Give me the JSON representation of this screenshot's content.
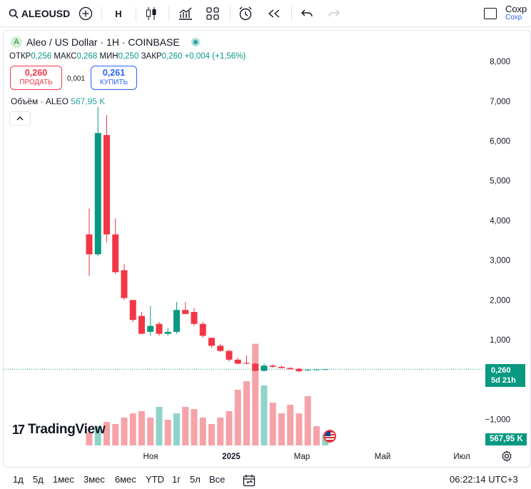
{
  "toolbar": {
    "symbol": "ALEOUSD",
    "interval": "H",
    "save_label": "Сохр",
    "save_sub": "Сохр"
  },
  "legend": {
    "title": "Aleo / US Dollar · 1H · COINBASE",
    "badge": "A",
    "o_label": "ОТКР",
    "o": "0,256",
    "h_label": "МАКС",
    "h": "0,268",
    "l_label": "МИН",
    "l": "0,250",
    "c_label": "ЗАКР",
    "c": "0,260",
    "change": "+0,004 (+1,56%)"
  },
  "trade": {
    "sell_price": "0,260",
    "sell_label": "ПРОДАТЬ",
    "spread": "0,001",
    "buy_price": "0,261",
    "buy_label": "КУПИТЬ"
  },
  "volume_legend": {
    "label": "Объём · ALEO",
    "value": "567,95 K"
  },
  "price_axis": [
    "8,000",
    "7,000",
    "6,000",
    "5,000",
    "4,000",
    "3,000",
    "2,000",
    "1,000",
    "−1,000"
  ],
  "current_price": {
    "value": "0,260",
    "countdown": "5d 21h"
  },
  "volume_tag": "567,95 K",
  "time_axis": [
    "Ноя",
    "2025",
    "Мар",
    "Май",
    "Июл"
  ],
  "logo": "TradingView",
  "ranges": [
    "1д",
    "5д",
    "1мес",
    "3мес",
    "6мес",
    "YTD",
    "1г",
    "5л",
    "Все"
  ],
  "clock": "06:22:14 UTC+3",
  "colors": {
    "up": "#089981",
    "down": "#f23645",
    "vol_up": "#8fd3c9",
    "vol_down": "#f5a3a8"
  },
  "chart_data": {
    "type": "candlestick",
    "title": "Aleo / US Dollar · 1H · COINBASE",
    "ylim": [
      -1.3,
      8.5
    ],
    "x_ticks": [
      "Ноя",
      "2025",
      "Мар",
      "Май",
      "Июл"
    ],
    "candles": [
      {
        "o": 3.65,
        "h": 4.3,
        "l": 2.6,
        "c": 3.15
      },
      {
        "o": 3.15,
        "h": 6.85,
        "l": 3.1,
        "c": 6.2
      },
      {
        "o": 6.15,
        "h": 6.65,
        "l": 3.45,
        "c": 3.65
      },
      {
        "o": 3.65,
        "h": 4.05,
        "l": 2.65,
        "c": 2.7
      },
      {
        "o": 2.75,
        "h": 2.9,
        "l": 2.0,
        "c": 2.05
      },
      {
        "o": 2.0,
        "h": 2.0,
        "l": 1.45,
        "c": 1.5
      },
      {
        "o": 1.6,
        "h": 1.7,
        "l": 1.15,
        "c": 1.15
      },
      {
        "o": 1.2,
        "h": 1.85,
        "l": 1.1,
        "c": 1.35
      },
      {
        "o": 1.4,
        "h": 1.45,
        "l": 1.1,
        "c": 1.15
      },
      {
        "o": 1.15,
        "h": 1.3,
        "l": 1.1,
        "c": 1.2
      },
      {
        "o": 1.2,
        "h": 1.95,
        "l": 1.15,
        "c": 1.75
      },
      {
        "o": 1.75,
        "h": 1.95,
        "l": 1.65,
        "c": 1.65
      },
      {
        "o": 1.7,
        "h": 1.8,
        "l": 1.35,
        "c": 1.4
      },
      {
        "o": 1.4,
        "h": 1.45,
        "l": 1.05,
        "c": 1.1
      },
      {
        "o": 1.05,
        "h": 1.05,
        "l": 0.8,
        "c": 0.85
      },
      {
        "o": 0.85,
        "h": 0.9,
        "l": 0.7,
        "c": 0.72
      },
      {
        "o": 0.72,
        "h": 0.75,
        "l": 0.45,
        "c": 0.5
      },
      {
        "o": 0.5,
        "h": 0.55,
        "l": 0.38,
        "c": 0.4
      },
      {
        "o": 0.42,
        "h": 0.6,
        "l": 0.38,
        "c": 0.4
      },
      {
        "o": 0.4,
        "h": 0.42,
        "l": 0.2,
        "c": 0.22
      },
      {
        "o": 0.22,
        "h": 0.4,
        "l": 0.2,
        "c": 0.35
      },
      {
        "o": 0.35,
        "h": 0.38,
        "l": 0.3,
        "c": 0.32
      },
      {
        "o": 0.32,
        "h": 0.35,
        "l": 0.28,
        "c": 0.29
      },
      {
        "o": 0.29,
        "h": 0.31,
        "l": 0.25,
        "c": 0.26
      },
      {
        "o": 0.27,
        "h": 0.3,
        "l": 0.18,
        "c": 0.21
      },
      {
        "o": 0.24,
        "h": 0.26,
        "l": 0.22,
        "c": 0.25
      },
      {
        "o": 0.25,
        "h": 0.26,
        "l": 0.24,
        "c": 0.255
      },
      {
        "o": 0.256,
        "h": 0.268,
        "l": 0.25,
        "c": 0.26
      }
    ],
    "volume": [
      {
        "v": 0.12,
        "up": false
      },
      {
        "v": 0.18,
        "up": true
      },
      {
        "v": 0.22,
        "up": false
      },
      {
        "v": 0.2,
        "up": false
      },
      {
        "v": 0.26,
        "up": false
      },
      {
        "v": 0.3,
        "up": false
      },
      {
        "v": 0.32,
        "up": false
      },
      {
        "v": 0.26,
        "up": false
      },
      {
        "v": 0.36,
        "up": true
      },
      {
        "v": 0.24,
        "up": false
      },
      {
        "v": 0.3,
        "up": true
      },
      {
        "v": 0.36,
        "up": false
      },
      {
        "v": 0.34,
        "up": false
      },
      {
        "v": 0.26,
        "up": false
      },
      {
        "v": 0.2,
        "up": false
      },
      {
        "v": 0.26,
        "up": false
      },
      {
        "v": 0.32,
        "up": false
      },
      {
        "v": 0.52,
        "up": false
      },
      {
        "v": 0.6,
        "up": false
      },
      {
        "v": 0.95,
        "up": false
      },
      {
        "v": 0.56,
        "up": true
      },
      {
        "v": 0.4,
        "up": false
      },
      {
        "v": 0.3,
        "up": false
      },
      {
        "v": 0.38,
        "up": false
      },
      {
        "v": 0.3,
        "up": false
      },
      {
        "v": 0.46,
        "up": false
      },
      {
        "v": 0.18,
        "up": false
      },
      {
        "v": 0.1,
        "up": true
      }
    ]
  }
}
